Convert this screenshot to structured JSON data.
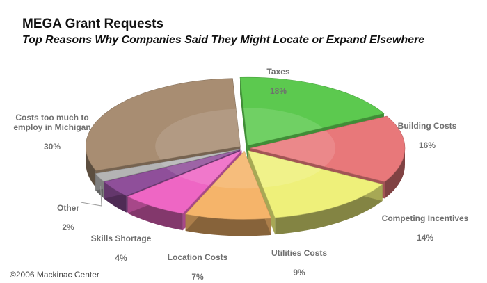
{
  "chart_data": {
    "type": "pie",
    "title": "MEGA Grant Requests",
    "subtitle": "Top Reasons Why Companies Said They Might Locate or Expand Elsewhere",
    "slices": [
      {
        "name": "Taxes",
        "label": "Taxes",
        "value": 18,
        "pct_label": "18%",
        "color": "#5cc94f"
      },
      {
        "name": "Building Costs",
        "label": "Building Costs",
        "value": 16,
        "pct_label": "16%",
        "color": "#e8787a"
      },
      {
        "name": "Competing Incentives",
        "label": "Competing Incentives",
        "value": 14,
        "pct_label": "14%",
        "color": "#eef07a"
      },
      {
        "name": "Utilities Costs",
        "label": "Utilities Costs",
        "value": 9,
        "pct_label": "9%",
        "color": "#f5b46a"
      },
      {
        "name": "Location Costs",
        "label": "Location Costs",
        "value": 7,
        "pct_label": "7%",
        "color": "#ee66c4"
      },
      {
        "name": "Skills Shortage",
        "label": "Skills Shortage",
        "value": 4,
        "pct_label": "4%",
        "color": "#8f4f9a"
      },
      {
        "name": "Other",
        "label": "Other",
        "value": 2,
        "pct_label": "2%",
        "color": "#b4b4b4"
      },
      {
        "name": "Costs too much to employ in Michigan",
        "label": "Costs too much to\nemploy in Michigan",
        "value": 30,
        "pct_label": "30%",
        "color": "#a88d72"
      }
    ]
  },
  "footer": {
    "copyright": "©2006 Mackinac Center"
  }
}
